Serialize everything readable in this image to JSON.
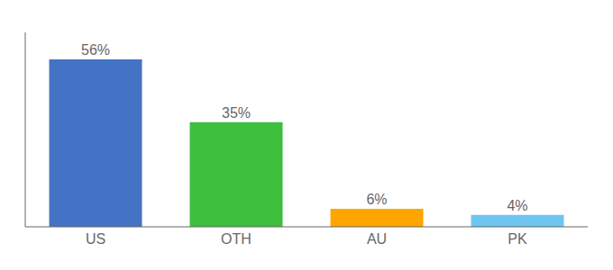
{
  "chart_data": {
    "type": "bar",
    "categories": [
      "US",
      "OTH",
      "AU",
      "PK"
    ],
    "values": [
      56,
      35,
      6,
      4
    ],
    "value_labels": [
      "56%",
      "35%",
      "6%",
      "4%"
    ],
    "colors": [
      "#4472C4",
      "#3DBF3D",
      "#FFA500",
      "#6EC6F0"
    ],
    "ylim": [
      0,
      65
    ],
    "data_labels": true,
    "tick_labels": "x"
  }
}
